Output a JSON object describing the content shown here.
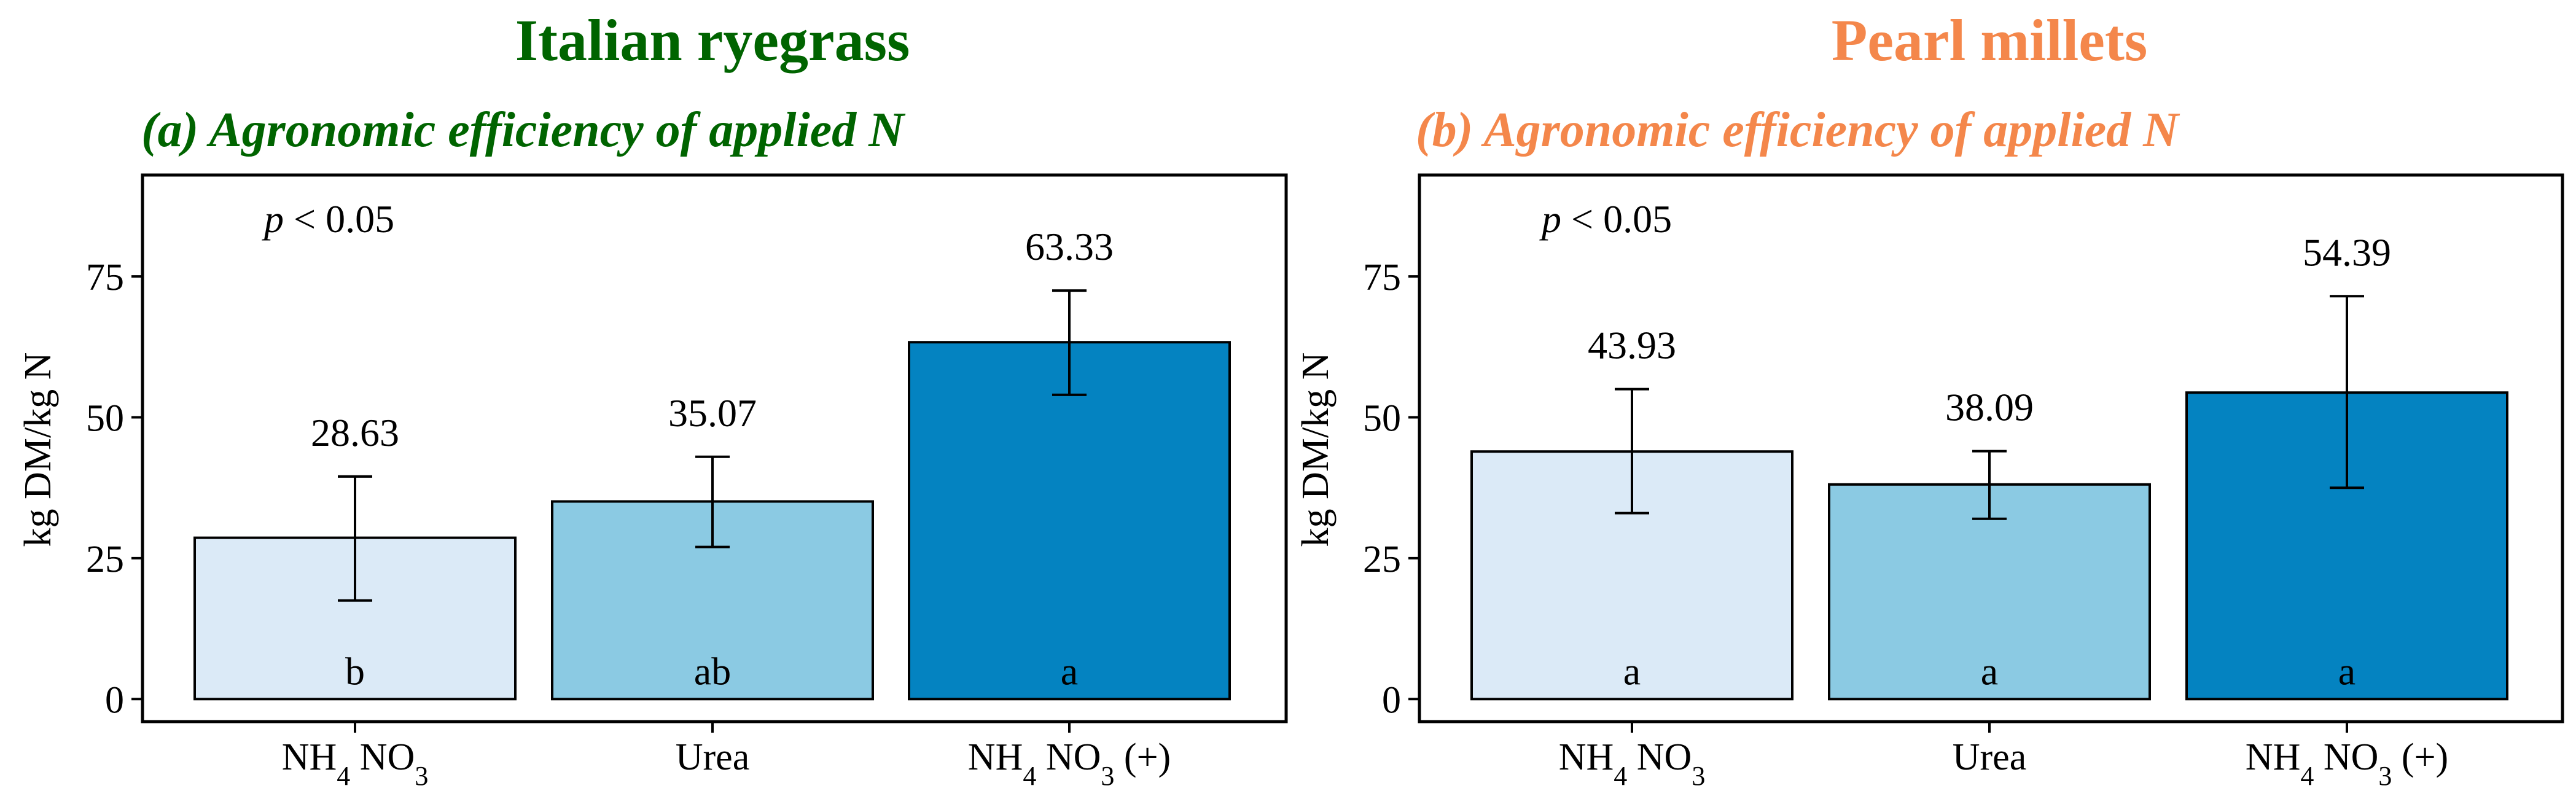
{
  "panels": [
    {
      "header": "Italian ryegrass",
      "header_color": "#006400",
      "subtitle": "(a) Agronomic efficiency of applied N",
      "ptext": "< 0.05",
      "ylabel": "kg DM/kg N",
      "categories": [
        "NH4 NO3",
        "Urea",
        "NH4 NO3 (+)"
      ]
    },
    {
      "header": "Pearl millets",
      "header_color": "#F4874B",
      "subtitle": "(b) Agronomic efficiency of applied N",
      "ptext": "< 0.05",
      "ylabel": "kg DM/kg N",
      "categories": [
        "NH4 NO3",
        "Urea",
        "NH4 NO3 (+)"
      ]
    }
  ],
  "chart_data": [
    {
      "type": "bar",
      "title": "Italian ryegrass",
      "subtitle": "(a) Agronomic efficiency of applied N",
      "xlabel": "",
      "ylabel": "kg DM/kg N",
      "categories": [
        "NH4 NO3",
        "Urea",
        "NH4 NO3 (+)"
      ],
      "values": [
        28.63,
        35.07,
        63.33
      ],
      "value_labels": [
        "28.63",
        "35.07",
        "63.33"
      ],
      "error_low": [
        17.5,
        27,
        54
      ],
      "error_high": [
        39.5,
        43,
        72.5
      ],
      "letters": [
        "b",
        "ab",
        "a"
      ],
      "colors": [
        "#DBEAF7",
        "#8BCAE3",
        "#0483C1"
      ],
      "annotation": "p < 0.05",
      "yticks": [
        0,
        25,
        50,
        75
      ],
      "ylim": [
        -4,
        93
      ],
      "grid": false,
      "legend": "none"
    },
    {
      "type": "bar",
      "title": "Pearl millets",
      "subtitle": "(b) Agronomic efficiency of applied N",
      "xlabel": "",
      "ylabel": "kg DM/kg N",
      "categories": [
        "NH4 NO3",
        "Urea",
        "NH4 NO3 (+)"
      ],
      "values": [
        43.93,
        38.09,
        54.39
      ],
      "value_labels": [
        "43.93",
        "38.09",
        "54.39"
      ],
      "error_low": [
        33,
        32,
        37.5
      ],
      "error_high": [
        55,
        44,
        71.5
      ],
      "letters": [
        "a",
        "a",
        "a"
      ],
      "colors": [
        "#DBEAF7",
        "#8BCAE3",
        "#0483C1"
      ],
      "annotation": "p < 0.05",
      "yticks": [
        0,
        25,
        50,
        75
      ],
      "ylim": [
        -4,
        93
      ],
      "grid": false,
      "legend": "none"
    }
  ]
}
